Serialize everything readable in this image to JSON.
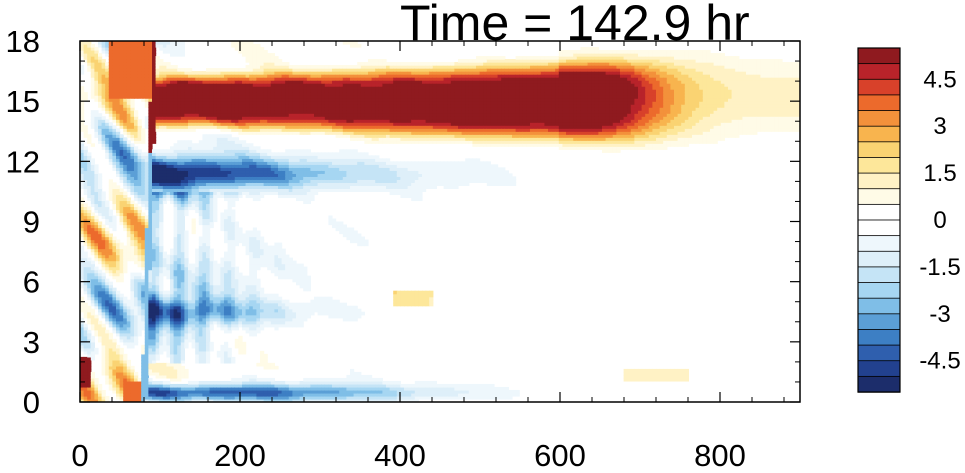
{
  "chart_data": {
    "type": "heatmap",
    "title": "Time = 142.9 hr",
    "xlabel": "",
    "ylabel": "",
    "xlim": [
      0,
      900
    ],
    "ylim": [
      0,
      18
    ],
    "x_ticks": [
      0,
      200,
      400,
      600,
      800
    ],
    "x_tick_labels": [
      "0",
      "200",
      "400",
      "600",
      "800"
    ],
    "y_ticks": [
      0,
      3,
      6,
      9,
      12,
      15,
      18
    ],
    "y_tick_labels": [
      "0",
      "3",
      "6",
      "9",
      "12",
      "15",
      "18"
    ],
    "grid": false,
    "colorbar": {
      "placement": "right",
      "min": -5.5,
      "max": 5.5,
      "step": 0.5,
      "labels": [
        "4.5",
        "3",
        "1.5",
        "0",
        "-1.5",
        "-3",
        "-4.5"
      ],
      "label_values": [
        4.5,
        3,
        1.5,
        0,
        -1.5,
        -3,
        -4.5
      ],
      "colors": [
        "#1c2d6b",
        "#22418f",
        "#2f5fae",
        "#3d7fc4",
        "#5b9fd6",
        "#7fbee7",
        "#a6d6f2",
        "#c5e4f6",
        "#deeff9",
        "#eef7fc",
        "#ffffff",
        "#ffffff",
        "#fffbe7",
        "#fff2c5",
        "#fde79a",
        "#fad372",
        "#f8b44e",
        "#f3913b",
        "#ec6a2c",
        "#d8412a",
        "#b8232a",
        "#8f1a1f"
      ]
    },
    "features": [
      {
        "name": "warm-jet-core",
        "sign": "positive",
        "y_center": 15.0,
        "x_range": [
          90,
          720
        ],
        "peak": 5.5
      },
      {
        "name": "cold-band",
        "sign": "negative",
        "y_center": 11.5,
        "x_range": [
          90,
          420
        ],
        "peak": -5.0
      },
      {
        "name": "near-surface-cold",
        "sign": "negative",
        "y_center": 0.5,
        "x_range": [
          80,
          620
        ],
        "peak": -4.5
      },
      {
        "name": "mid-level-cold",
        "sign": "negative",
        "y_center": 4.5,
        "x_range": [
          80,
          400
        ],
        "peak": -2.5
      },
      {
        "name": "front-edge",
        "sign": "mixed",
        "x_at_top": 92,
        "x_at_bottom": 80
      }
    ]
  }
}
